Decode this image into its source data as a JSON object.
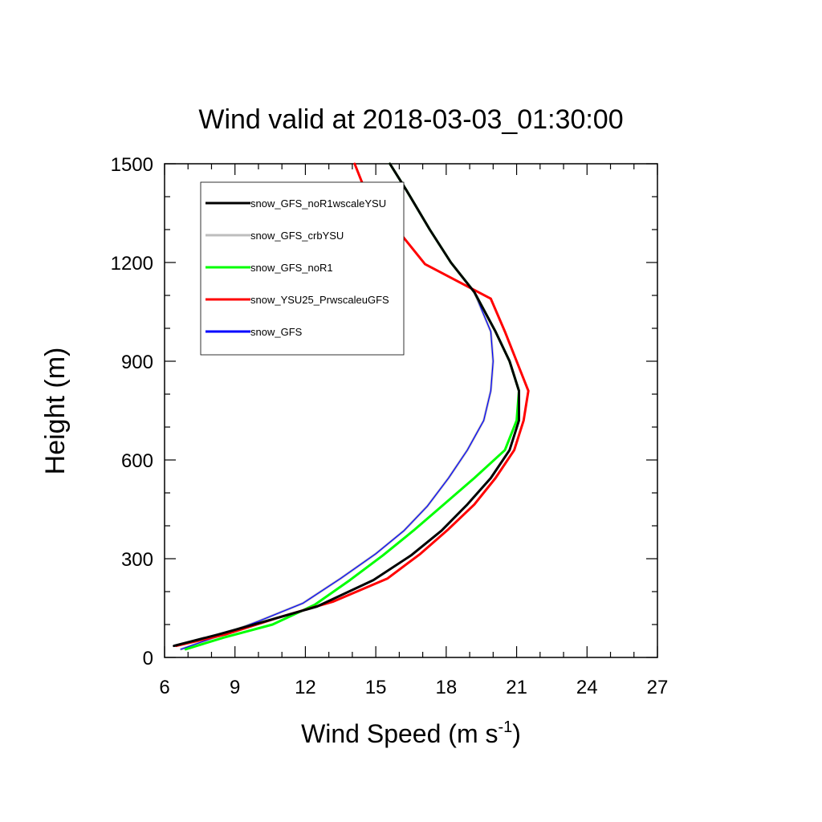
{
  "chart_data": {
    "type": "line",
    "title": "Wind valid at 2018-03-03_01:30:00",
    "xlabel": "Wind Speed (m s",
    "xlabel_superscript": "-1",
    "xlabel_close": ")",
    "ylabel": "Height (m)",
    "xlim": [
      6,
      27
    ],
    "ylim": [
      0,
      1500
    ],
    "xticks": [
      "6",
      "9",
      "12",
      "15",
      "18",
      "21",
      "24",
      "27"
    ],
    "yticks": [
      "0",
      "300",
      "600",
      "900",
      "1200",
      "1500"
    ],
    "grid": false,
    "legend_position": "top-left",
    "series": [
      {
        "name": "snow_GFS_noR1wscaleYSU",
        "color": "#000000",
        "points": [
          [
            6.4,
            35
          ],
          [
            8.3,
            70
          ],
          [
            10.3,
            110
          ],
          [
            12.5,
            155
          ],
          [
            14.9,
            235
          ],
          [
            16.5,
            310
          ],
          [
            17.8,
            385
          ],
          [
            18.9,
            465
          ],
          [
            19.9,
            545
          ],
          [
            20.7,
            630
          ],
          [
            21.1,
            720
          ],
          [
            21.1,
            810
          ],
          [
            20.7,
            900
          ],
          [
            20.1,
            990
          ],
          [
            19.2,
            1110
          ],
          [
            18.2,
            1200
          ],
          [
            17.3,
            1300
          ],
          [
            16.3,
            1420
          ],
          [
            15.6,
            1500
          ]
        ]
      },
      {
        "name": "snow_GFS_crbYSU",
        "color": "#bebebe",
        "points": [
          [
            6.7,
            25
          ],
          [
            8.5,
            70
          ],
          [
            10.0,
            110
          ],
          [
            11.9,
            165
          ],
          [
            13.5,
            240
          ],
          [
            15.0,
            315
          ],
          [
            16.2,
            385
          ],
          [
            17.2,
            460
          ],
          [
            18.1,
            545
          ],
          [
            18.9,
            630
          ],
          [
            19.6,
            720
          ],
          [
            19.9,
            810
          ],
          [
            20.0,
            900
          ],
          [
            19.9,
            990
          ],
          [
            19.2,
            1110
          ],
          [
            18.2,
            1200
          ],
          [
            17.3,
            1300
          ],
          [
            16.3,
            1420
          ],
          [
            15.6,
            1500
          ]
        ]
      },
      {
        "name": "snow_GFS_noR1",
        "color": "#00ff00",
        "points": [
          [
            6.9,
            25
          ],
          [
            8.5,
            60
          ],
          [
            10.6,
            100
          ],
          [
            12.4,
            160
          ],
          [
            13.9,
            235
          ],
          [
            15.3,
            310
          ],
          [
            16.6,
            385
          ],
          [
            17.9,
            465
          ],
          [
            19.2,
            545
          ],
          [
            20.5,
            630
          ],
          [
            21.0,
            720
          ],
          [
            21.1,
            810
          ],
          [
            20.7,
            900
          ],
          [
            20.1,
            990
          ],
          [
            19.2,
            1110
          ],
          [
            18.2,
            1200
          ],
          [
            17.3,
            1300
          ],
          [
            16.3,
            1420
          ],
          [
            15.6,
            1500
          ]
        ]
      },
      {
        "name": "snow_YSU25_PrwscaleuGFS",
        "color": "#ff0000",
        "points": [
          [
            6.5,
            35
          ],
          [
            8.6,
            70
          ],
          [
            10.8,
            120
          ],
          [
            13.2,
            170
          ],
          [
            15.5,
            240
          ],
          [
            16.9,
            315
          ],
          [
            18.1,
            390
          ],
          [
            19.2,
            465
          ],
          [
            20.1,
            545
          ],
          [
            20.9,
            630
          ],
          [
            21.3,
            720
          ],
          [
            21.5,
            810
          ],
          [
            21.0,
            900
          ],
          [
            20.5,
            990
          ],
          [
            19.9,
            1090
          ],
          [
            17.1,
            1195
          ],
          [
            15.8,
            1310
          ],
          [
            14.6,
            1410
          ],
          [
            14.1,
            1500
          ]
        ]
      },
      {
        "name": "snow_GFS",
        "color": "#0000ff",
        "points": [
          [
            6.7,
            25
          ],
          [
            8.5,
            70
          ],
          [
            10.0,
            110
          ],
          [
            11.9,
            165
          ],
          [
            13.5,
            240
          ],
          [
            15.0,
            315
          ],
          [
            16.2,
            385
          ],
          [
            17.2,
            460
          ],
          [
            18.1,
            545
          ],
          [
            18.9,
            630
          ],
          [
            19.6,
            720
          ],
          [
            19.9,
            810
          ],
          [
            20.0,
            900
          ],
          [
            19.9,
            990
          ],
          [
            19.2,
            1110
          ],
          [
            18.2,
            1200
          ],
          [
            17.3,
            1300
          ],
          [
            16.3,
            1420
          ],
          [
            15.6,
            1500
          ]
        ]
      }
    ]
  }
}
